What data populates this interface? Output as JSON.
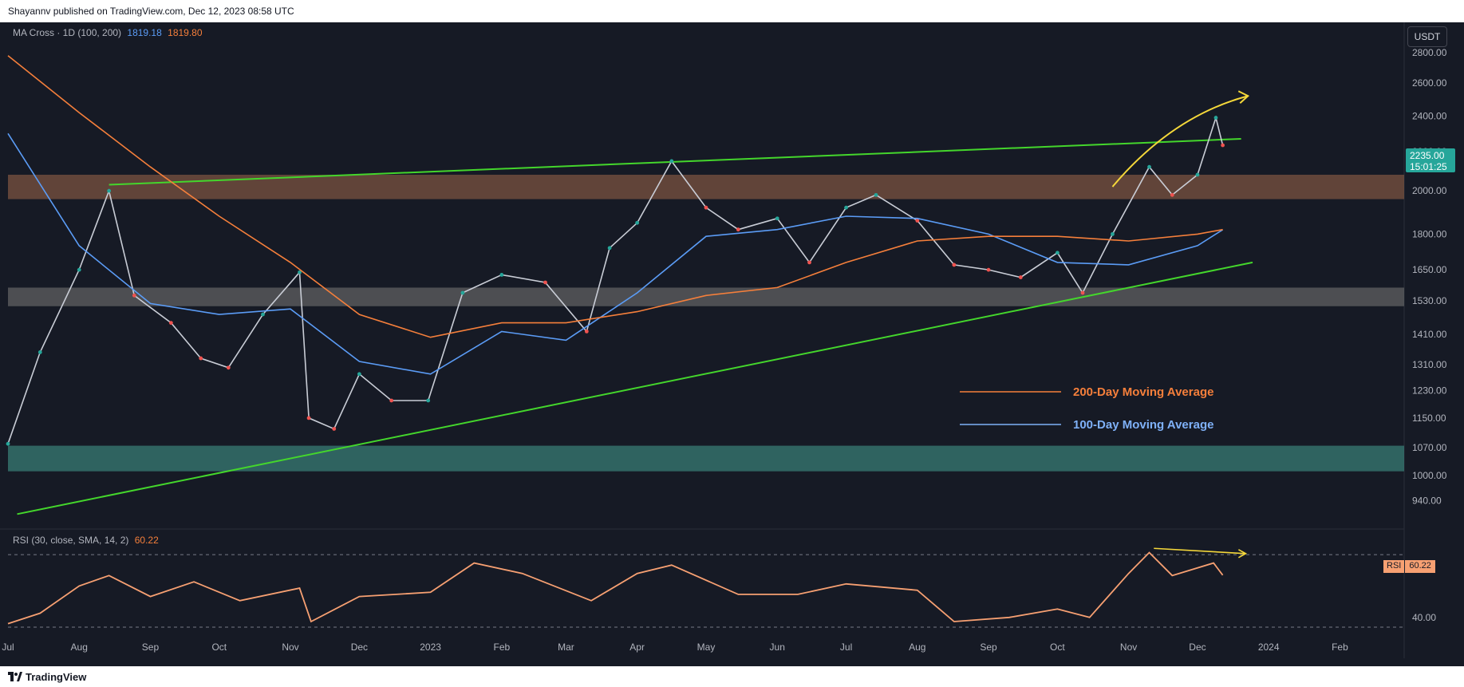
{
  "header": {
    "publisher_text": "Shayannv published on TradingView.com, Dec 12, 2023 08:58 UTC"
  },
  "footer": {
    "brand": "TradingView"
  },
  "price_pane": {
    "indicator_label": "MA Cross · 1D (100, 200)",
    "ma100_value": "1819.18",
    "ma200_value": "1819.80",
    "currency_button": "USDT",
    "current_price": "2235.00",
    "countdown": "15:01:25",
    "y_ticks": [
      "2800.00",
      "2600.00",
      "2400.00",
      "2200.00",
      "2000.00",
      "1800.00",
      "1650.00",
      "1530.00",
      "1410.00",
      "1310.00",
      "1230.00",
      "1150.00",
      "1070.00",
      "1000.00",
      "940.00"
    ],
    "legend": [
      {
        "label": "200-Day Moving Average",
        "color": "#f57f3b"
      },
      {
        "label": "100-Day Moving Average",
        "color": "#7fb1f8"
      }
    ]
  },
  "rsi_pane": {
    "indicator_label": "RSI (30, close, SMA, 14, 2)",
    "value": "60.22",
    "tag_label": "RSI",
    "y_ticks": [
      "40.00"
    ]
  },
  "x_axis": {
    "labels": [
      "Jul",
      "Aug",
      "Sep",
      "Oct",
      "Nov",
      "Dec",
      "2023",
      "Feb",
      "Mar",
      "Apr",
      "May",
      "Jun",
      "Jul",
      "Aug",
      "Sep",
      "Oct",
      "Nov",
      "Dec",
      "2024",
      "Feb"
    ]
  },
  "colors": {
    "up": "#26a69a",
    "down": "#ef5350",
    "ma100": "#5b9cf6",
    "ma200": "#f57f3b",
    "trendline": "#44d62c",
    "arrow": "#f5d83a",
    "resistance_zone": "#8a5a44",
    "support_zone": "#3d8a80",
    "rsi": "#f7a072"
  },
  "chart_data": {
    "type": "line",
    "title": "",
    "symbol_currency": "USDT",
    "timeframe": "1D",
    "x_range": [
      "2022-07-01",
      "2024-02-29"
    ],
    "ylim": [
      900,
      2900
    ],
    "scale": "log",
    "series": [
      {
        "name": "Price",
        "x": [
          "2022-07-01",
          "2022-07-15",
          "2022-08-01",
          "2022-08-14",
          "2022-08-25",
          "2022-09-10",
          "2022-09-23",
          "2022-10-05",
          "2022-10-20",
          "2022-11-05",
          "2022-11-09",
          "2022-11-20",
          "2022-12-01",
          "2022-12-15",
          "2022-12-31",
          "2023-01-15",
          "2023-02-01",
          "2023-02-20",
          "2023-03-10",
          "2023-03-20",
          "2023-04-01",
          "2023-04-16",
          "2023-05-01",
          "2023-05-15",
          "2023-06-01",
          "2023-06-15",
          "2023-07-01",
          "2023-07-14",
          "2023-08-01",
          "2023-08-17",
          "2023-09-01",
          "2023-09-15",
          "2023-10-01",
          "2023-10-12",
          "2023-10-25",
          "2023-11-10",
          "2023-11-20",
          "2023-12-01",
          "2023-12-09",
          "2023-12-12"
        ],
        "values": [
          1080,
          1350,
          1650,
          2000,
          1550,
          1450,
          1330,
          1300,
          1480,
          1640,
          1150,
          1120,
          1280,
          1200,
          1200,
          1560,
          1630,
          1600,
          1420,
          1740,
          1850,
          2150,
          1920,
          1820,
          1870,
          1680,
          1920,
          1980,
          1860,
          1670,
          1650,
          1620,
          1720,
          1560,
          1800,
          2120,
          1980,
          2080,
          2390,
          2235
        ]
      },
      {
        "name": "100-Day Moving Average",
        "x": [
          "2022-07-01",
          "2022-08-01",
          "2022-09-01",
          "2022-10-01",
          "2022-11-01",
          "2022-12-01",
          "2023-01-01",
          "2023-02-01",
          "2023-03-01",
          "2023-04-01",
          "2023-05-01",
          "2023-06-01",
          "2023-07-01",
          "2023-08-01",
          "2023-09-01",
          "2023-10-01",
          "2023-11-01",
          "2023-12-01",
          "2023-12-12"
        ],
        "values": [
          2300,
          1750,
          1520,
          1480,
          1500,
          1320,
          1280,
          1420,
          1390,
          1560,
          1790,
          1820,
          1880,
          1870,
          1800,
          1680,
          1670,
          1750,
          1819.18
        ]
      },
      {
        "name": "200-Day Moving Average",
        "x": [
          "2022-07-01",
          "2022-08-01",
          "2022-09-01",
          "2022-10-01",
          "2022-11-01",
          "2022-12-01",
          "2023-01-01",
          "2023-02-01",
          "2023-03-01",
          "2023-04-01",
          "2023-05-01",
          "2023-06-01",
          "2023-07-01",
          "2023-08-01",
          "2023-09-01",
          "2023-10-01",
          "2023-11-01",
          "2023-12-01",
          "2023-12-12"
        ],
        "values": [
          2780,
          2420,
          2120,
          1880,
          1680,
          1480,
          1400,
          1450,
          1450,
          1490,
          1550,
          1580,
          1680,
          1770,
          1790,
          1790,
          1770,
          1800,
          1819.8
        ]
      }
    ],
    "zones": [
      {
        "name": "resistance",
        "from": 1960,
        "to": 2080
      },
      {
        "name": "middle",
        "from": 1510,
        "to": 1580
      },
      {
        "name": "support",
        "from": 1010,
        "to": 1075
      }
    ],
    "trendlines": [
      {
        "x": [
          "2022-08-14",
          "2023-12-20"
        ],
        "y": [
          2030,
          2270
        ]
      },
      {
        "x": [
          "2022-07-05",
          "2023-12-25"
        ],
        "y": [
          910,
          1680
        ]
      }
    ],
    "rsi": {
      "ylim": [
        30,
        75
      ],
      "x": [
        "2022-07-01",
        "2022-07-15",
        "2022-08-01",
        "2022-08-14",
        "2022-09-01",
        "2022-09-20",
        "2022-10-10",
        "2022-11-05",
        "2022-11-10",
        "2022-12-01",
        "2023-01-01",
        "2023-01-20",
        "2023-02-10",
        "2023-03-12",
        "2023-04-01",
        "2023-04-16",
        "2023-05-15",
        "2023-06-10",
        "2023-07-01",
        "2023-08-01",
        "2023-08-17",
        "2023-09-10",
        "2023-10-01",
        "2023-10-15",
        "2023-11-01",
        "2023-11-10",
        "2023-11-20",
        "2023-12-08",
        "2023-12-12"
      ],
      "values": [
        37,
        42,
        55,
        60,
        50,
        57,
        48,
        54,
        38,
        50,
        52,
        66,
        61,
        48,
        61,
        65,
        51,
        51,
        56,
        53,
        38,
        40,
        44,
        40,
        61,
        71,
        60,
        66,
        60.22
      ]
    }
  }
}
